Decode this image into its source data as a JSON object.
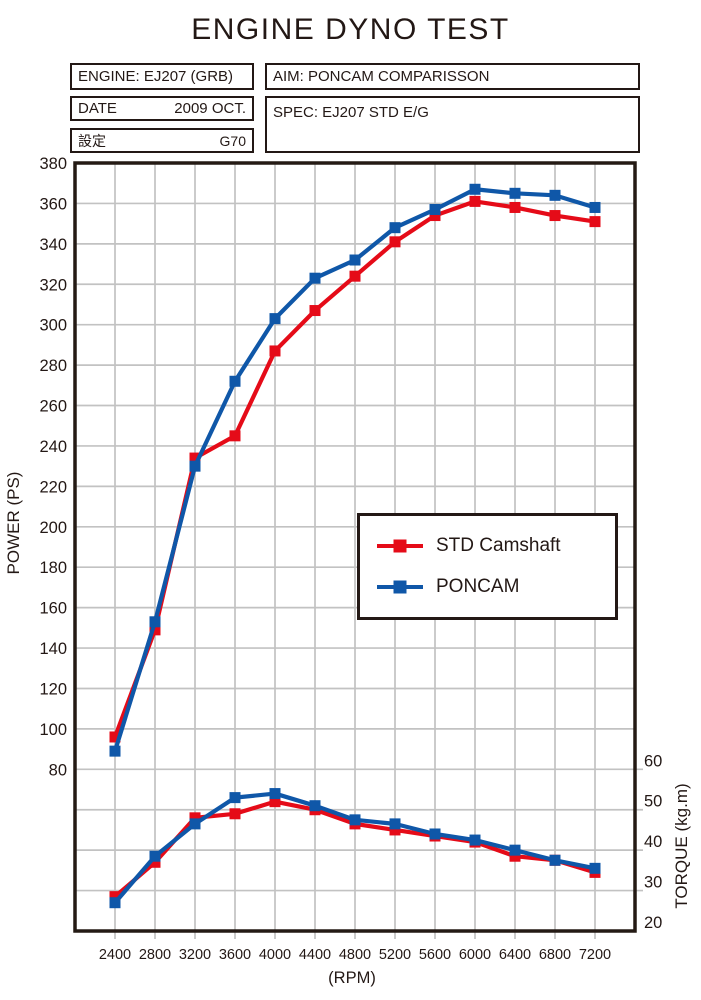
{
  "title": "ENGINE DYNO TEST",
  "header": {
    "engine": "ENGINE: EJ207 (GRB)",
    "aim": "AIM: PONCAM COMPARISSON",
    "date_label": "DATE",
    "date_value": "2009 OCT.",
    "spec": "SPEC: EJ207 STD E/G",
    "setting_label": "設定",
    "setting_value": "G70"
  },
  "chart_data": {
    "type": "line",
    "x": [
      2400,
      2800,
      3200,
      3600,
      4000,
      4400,
      4800,
      5200,
      5600,
      6000,
      6400,
      6800,
      7200
    ],
    "xlabel": "(RPM)",
    "x_tick_labels": [
      "2400",
      "2800",
      "3200",
      "3600",
      "4000",
      "4400",
      "4800",
      "5200",
      "5600",
      "6000",
      "6400",
      "6800",
      "7200"
    ],
    "x_range": [
      2000,
      7600
    ],
    "left_axis": {
      "label": "POWER (PS)",
      "ticks": [
        380,
        360,
        340,
        320,
        300,
        280,
        260,
        240,
        220,
        200,
        180,
        160,
        140,
        120,
        100,
        80
      ],
      "range": [
        0,
        380
      ],
      "grid_step": 20
    },
    "right_axis": {
      "label": "TORQUE (kg.m)",
      "ticks": [
        60,
        50,
        40,
        30,
        20
      ],
      "range": [
        20,
        210
      ],
      "grid_step": 10
    },
    "grid": true,
    "legend_position": "center-right",
    "series": [
      {
        "name": "STD Camshaft",
        "axis": "power",
        "unit": "PS",
        "color": "#e50b18",
        "values": [
          96,
          149,
          234,
          245,
          287,
          307,
          324,
          341,
          354,
          361,
          358,
          354,
          351
        ]
      },
      {
        "name": "PONCAM",
        "axis": "power",
        "unit": "PS",
        "color": "#0f57a8",
        "values": [
          89,
          153,
          230,
          272,
          303,
          323,
          332,
          348,
          357,
          367,
          365,
          364,
          358
        ]
      },
      {
        "name": "STD Camshaft",
        "axis": "torque",
        "unit": "kg.m",
        "color": "#e50b18",
        "values": [
          28.5,
          37,
          48,
          49,
          52,
          50,
          46.5,
          45,
          43.5,
          42,
          38.5,
          37.5,
          34.5
        ]
      },
      {
        "name": "PONCAM",
        "axis": "torque",
        "unit": "kg.m",
        "color": "#0f57a8",
        "values": [
          27,
          38.5,
          46.5,
          53,
          54,
          51,
          47.5,
          46.5,
          44,
          42.5,
          40,
          37.5,
          35.5
        ]
      }
    ],
    "legend": {
      "items": [
        {
          "label": "STD Camshaft",
          "color": "#e50b18"
        },
        {
          "label": "PONCAM",
          "color": "#0f57a8"
        }
      ]
    },
    "colors": {
      "grid": "#c2c2c2",
      "axis": "#241a14",
      "ink": "#231815"
    }
  }
}
